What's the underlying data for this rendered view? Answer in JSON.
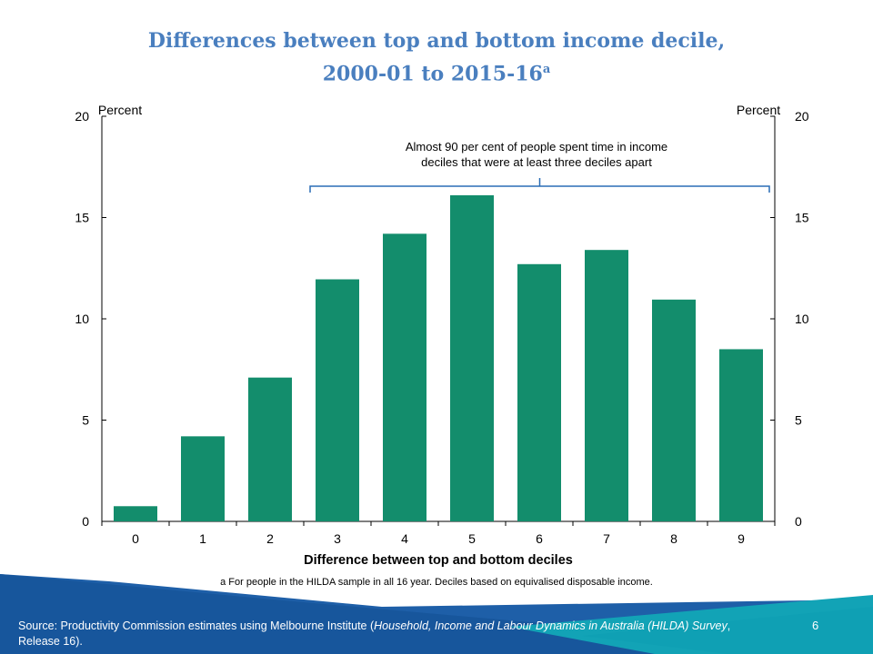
{
  "chart_data": {
    "type": "bar",
    "title": "Differences between top and bottom income decile,",
    "title_line2": "2000-01 to 2015-16",
    "title_sup": "a",
    "categories": [
      "0",
      "1",
      "2",
      "3",
      "4",
      "5",
      "6",
      "7",
      "8",
      "9"
    ],
    "values": [
      0.75,
      4.2,
      7.1,
      11.95,
      14.2,
      16.1,
      12.7,
      13.4,
      10.95,
      8.5
    ],
    "xlabel": "Difference between top and bottom deciles",
    "ylabel_left": "Percent",
    "ylabel_right": "Percent",
    "ylim": [
      0,
      20
    ],
    "yticks": [
      "0",
      "5",
      "10",
      "15",
      "20"
    ],
    "bar_color": "#138d6c",
    "annotation": [
      "Almost 90 per cent of people spent time in income",
      "deciles that were at least three deciles apart"
    ],
    "annotation_range": [
      "3",
      "9"
    ],
    "grid": false
  },
  "footnote": "a For people in the HILDA sample in all 16 year. Deciles based on equivalised disposable income.",
  "source": {
    "prefix": "Source: Productivity Commission estimates using Melbourne Institute (",
    "italic": "Household, Income and Labour Dynamics in Australia (HILDA) Survey",
    "suffix": ", Release 16)."
  },
  "page_number": "6"
}
